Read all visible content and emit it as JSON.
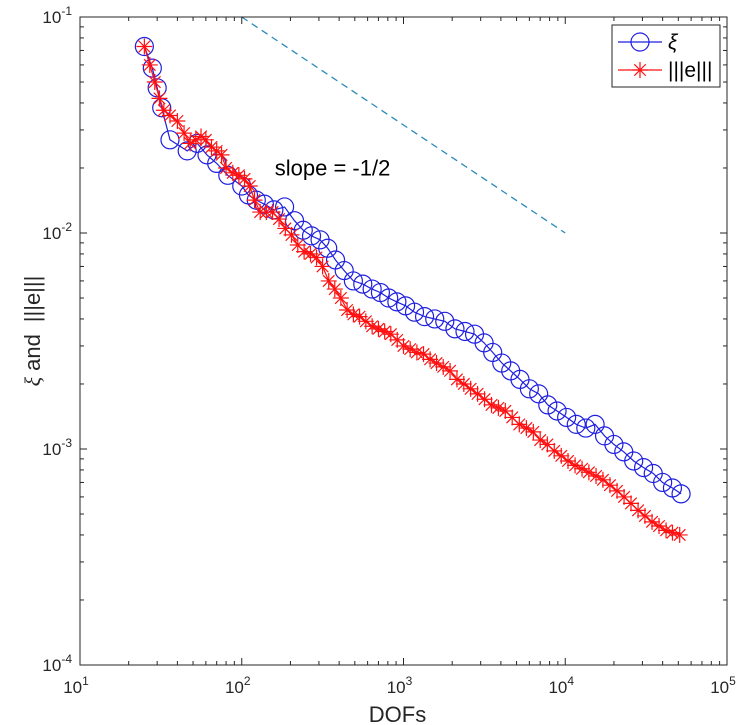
{
  "chart_data": {
    "type": "line",
    "scale": "loglog",
    "xlabel": "DOFs",
    "ylabel_parts": [
      "ξ",
      "and",
      "|||e|||"
    ],
    "xlim": [
      10,
      100000
    ],
    "ylim": [
      0.0001,
      0.1
    ],
    "x_ticks": [
      {
        "value": 10,
        "base": "10",
        "exp": "1"
      },
      {
        "value": 100,
        "base": "10",
        "exp": "2"
      },
      {
        "value": 1000,
        "base": "10",
        "exp": "3"
      },
      {
        "value": 10000,
        "base": "10",
        "exp": "4"
      },
      {
        "value": 100000,
        "base": "10",
        "exp": "5"
      }
    ],
    "y_ticks": [
      {
        "value": 0.0001,
        "base": "10",
        "exp": "-4"
      },
      {
        "value": 0.001,
        "base": "10",
        "exp": "-3"
      },
      {
        "value": 0.01,
        "base": "10",
        "exp": "-2"
      },
      {
        "value": 0.1,
        "base": "10",
        "exp": "-1"
      }
    ],
    "grid": false,
    "legend_position": "top-right",
    "annotation": {
      "text": "slope = -1/2",
      "x": 160,
      "y": 0.0185
    },
    "reference_line": {
      "name": "slope -1/2 reference",
      "x": [
        100,
        10000
      ],
      "y": [
        0.1,
        0.01
      ],
      "color": "#2a8bb8",
      "style": "dashed"
    },
    "series": [
      {
        "name": "ξ",
        "legend_label": "ξ",
        "color": "#1f1fe0",
        "marker": "circle",
        "x": [
          25,
          28,
          30,
          32,
          36,
          46,
          53,
          61,
          70,
          82,
          100,
          110,
          123,
          138,
          158,
          184,
          212,
          240,
          270,
          305,
          340,
          380,
          430,
          490,
          560,
          640,
          720,
          810,
          910,
          1030,
          1170,
          1350,
          1560,
          1800,
          2080,
          2400,
          2750,
          3150,
          3560,
          4050,
          4600,
          5250,
          6000,
          6850,
          7800,
          8900,
          10200,
          11700,
          13400,
          15300,
          17500,
          20000,
          23000,
          26500,
          30500,
          35000,
          40000,
          46000,
          52000
        ],
        "y": [
          0.073,
          0.058,
          0.047,
          0.038,
          0.027,
          0.024,
          0.026,
          0.023,
          0.021,
          0.0185,
          0.0165,
          0.015,
          0.0142,
          0.0136,
          0.0128,
          0.0132,
          0.0114,
          0.0103,
          0.0097,
          0.0093,
          0.0085,
          0.0075,
          0.0067,
          0.006,
          0.0058,
          0.0055,
          0.0053,
          0.005,
          0.0048,
          0.0046,
          0.0043,
          0.0041,
          0.004,
          0.0039,
          0.0036,
          0.0035,
          0.0034,
          0.0031,
          0.0028,
          0.0025,
          0.0023,
          0.0021,
          0.0019,
          0.0018,
          0.0016,
          0.0015,
          0.0014,
          0.0013,
          0.00125,
          0.0013,
          0.00115,
          0.00105,
          0.00097,
          0.00088,
          0.00082,
          0.00077,
          0.0007,
          0.00066,
          0.00062
        ]
      },
      {
        "name": "|||e|||",
        "legend_label": "|||e|||",
        "color": "#ff1010",
        "marker": "asterisk",
        "x": [
          25,
          27,
          29,
          31,
          33,
          36,
          40,
          44,
          48,
          52,
          56,
          60,
          65,
          70,
          75,
          80,
          88,
          96,
          104,
          112,
          120,
          130,
          142,
          155,
          170,
          186,
          203,
          222,
          243,
          266,
          290,
          316,
          345,
          376,
          410,
          448,
          490,
          535,
          585,
          640,
          700,
          765,
          835,
          915,
          1000,
          1100,
          1210,
          1330,
          1460,
          1600,
          1760,
          1940,
          2140,
          2360,
          2600,
          2870,
          3170,
          3500,
          3860,
          4260,
          4700,
          5200,
          5750,
          6350,
          7000,
          7750,
          8550,
          9450,
          10400,
          11500,
          12700,
          14000,
          15500,
          17100,
          18900,
          20900,
          23100,
          25500,
          28200,
          31100,
          34400,
          38000,
          42000,
          46000,
          51000
        ],
        "y": [
          0.073,
          0.06,
          0.05,
          0.042,
          0.037,
          0.035,
          0.033,
          0.029,
          0.026,
          0.027,
          0.028,
          0.027,
          0.025,
          0.024,
          0.023,
          0.02,
          0.019,
          0.0185,
          0.0178,
          0.0165,
          0.0142,
          0.0125,
          0.0125,
          0.0125,
          0.0116,
          0.0105,
          0.0098,
          0.0088,
          0.0082,
          0.008,
          0.0077,
          0.007,
          0.006,
          0.0055,
          0.005,
          0.0044,
          0.0042,
          0.0041,
          0.0039,
          0.0037,
          0.0036,
          0.0035,
          0.0034,
          0.0032,
          0.003,
          0.0029,
          0.0028,
          0.00275,
          0.0026,
          0.0025,
          0.0024,
          0.0023,
          0.0021,
          0.002,
          0.0019,
          0.0018,
          0.0017,
          0.0016,
          0.00155,
          0.0015,
          0.0014,
          0.0013,
          0.00125,
          0.0012,
          0.0011,
          0.00105,
          0.00098,
          0.00093,
          0.00088,
          0.00084,
          0.00081,
          0.00078,
          0.00075,
          0.00072,
          0.00068,
          0.00064,
          0.0006,
          0.00056,
          0.00052,
          0.00049,
          0.00046,
          0.00044,
          0.00042,
          0.00041,
          0.0004
        ]
      }
    ]
  }
}
